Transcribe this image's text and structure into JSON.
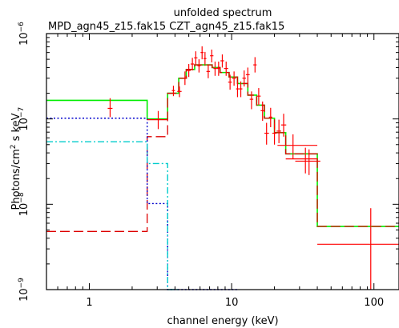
{
  "chart_data": {
    "type": "step",
    "title": "unfolded spectrum",
    "subtitle": "MPD_agn45_z15.fak15  CZT_agn45_z15.fak15",
    "xlabel": "channel energy (keV)",
    "ylabel": "Photons/cm^2 s keV",
    "xscale": "log",
    "yscale": "log",
    "xlim": [
      0.5,
      150
    ],
    "ylim": [
      1e-09,
      1e-06
    ],
    "x_ticks": [
      {
        "value": 1,
        "label": "1"
      },
      {
        "value": 10,
        "label": "10"
      },
      {
        "value": 100,
        "label": "100"
      }
    ],
    "y_ticks": [
      {
        "value": 1e-09,
        "base": "10",
        "exp": "−9"
      },
      {
        "value": 1e-08,
        "base": "10",
        "exp": "−8"
      },
      {
        "value": 1e-07,
        "base": "10",
        "exp": "−7"
      },
      {
        "value": 1e-06,
        "base": "10",
        "exp": "−6"
      }
    ],
    "colors": {
      "data": "#ff0000",
      "total_model": "#00ee00",
      "blue_component": "#0000cc",
      "cyan_component": "#00cccc",
      "red_component": "#dd0000",
      "frame": "#000000"
    },
    "data_points": [
      {
        "x": 1.4,
        "y": 1.33e-07,
        "xerr": [
          1.4,
          1.4
        ],
        "yerr": [
          1.05e-07,
          1.75e-07
        ]
      },
      {
        "x": 3.05,
        "y": 9.8e-08,
        "xerr": [
          2.55,
          3.55
        ],
        "yerr": [
          7.6e-08,
          1.24e-07
        ]
      },
      {
        "x": 3.9,
        "y": 2.15e-07,
        "xerr": [
          3.8,
          4.0
        ],
        "yerr": [
          1.85e-07,
          2.45e-07
        ]
      },
      {
        "x": 4.3,
        "y": 2.1e-07,
        "xerr": [
          4.15,
          4.45
        ],
        "yerr": [
          1.8e-07,
          2.4e-07
        ]
      },
      {
        "x": 4.7,
        "y": 3e-07,
        "xerr": [
          4.55,
          4.85
        ],
        "yerr": [
          2.5e-07,
          3.6e-07
        ]
      },
      {
        "x": 5.0,
        "y": 3.7e-07,
        "xerr": [
          4.85,
          5.15
        ],
        "yerr": [
          3.1e-07,
          4.4e-07
        ]
      },
      {
        "x": 5.3,
        "y": 4.4e-07,
        "xerr": [
          5.15,
          5.45
        ],
        "yerr": [
          3.7e-07,
          5.2e-07
        ]
      },
      {
        "x": 5.6,
        "y": 5.2e-07,
        "xerr": [
          5.45,
          5.75
        ],
        "yerr": [
          4.3e-07,
          6.2e-07
        ]
      },
      {
        "x": 5.9,
        "y": 4.2e-07,
        "xerr": [
          5.75,
          6.05
        ],
        "yerr": [
          3.5e-07,
          5e-07
        ]
      },
      {
        "x": 6.2,
        "y": 6e-07,
        "xerr": [
          6.05,
          6.35
        ],
        "yerr": [
          5e-07,
          7.1e-07
        ]
      },
      {
        "x": 6.5,
        "y": 5.1e-07,
        "xerr": [
          6.35,
          6.65
        ],
        "yerr": [
          4.2e-07,
          6.1e-07
        ]
      },
      {
        "x": 6.85,
        "y": 3.6e-07,
        "xerr": [
          6.65,
          7.05
        ],
        "yerr": [
          3e-07,
          4.3e-07
        ]
      },
      {
        "x": 7.25,
        "y": 5.5e-07,
        "xerr": [
          7.05,
          7.45
        ],
        "yerr": [
          4.6e-07,
          6.5e-07
        ]
      },
      {
        "x": 7.65,
        "y": 3.9e-07,
        "xerr": [
          7.45,
          7.85
        ],
        "yerr": [
          3.2e-07,
          4.7e-07
        ]
      },
      {
        "x": 8.1,
        "y": 3.9e-07,
        "xerr": [
          7.85,
          8.35
        ],
        "yerr": [
          3.2e-07,
          4.7e-07
        ]
      },
      {
        "x": 8.6,
        "y": 4.8e-07,
        "xerr": [
          8.35,
          8.85
        ],
        "yerr": [
          4e-07,
          5.7e-07
        ]
      },
      {
        "x": 9.15,
        "y": 3.9e-07,
        "xerr": [
          8.85,
          9.45
        ],
        "yerr": [
          3.2e-07,
          4.7e-07
        ]
      },
      {
        "x": 9.75,
        "y": 2.7e-07,
        "xerr": [
          9.45,
          10.05
        ],
        "yerr": [
          2.2e-07,
          3.3e-07
        ]
      },
      {
        "x": 10.4,
        "y": 3e-07,
        "xerr": [
          10.05,
          10.75
        ],
        "yerr": [
          2.45e-07,
          3.6e-07
        ]
      },
      {
        "x": 11.0,
        "y": 2.25e-07,
        "xerr": [
          10.75,
          11.3
        ],
        "yerr": [
          1.8e-07,
          2.75e-07
        ]
      },
      {
        "x": 11.6,
        "y": 2.25e-07,
        "xerr": [
          11.3,
          11.9
        ],
        "yerr": [
          1.8e-07,
          2.75e-07
        ]
      },
      {
        "x": 12.25,
        "y": 3e-07,
        "xerr": [
          11.9,
          12.6
        ],
        "yerr": [
          2.4e-07,
          3.7e-07
        ]
      },
      {
        "x": 13.0,
        "y": 3.3e-07,
        "xerr": [
          12.6,
          13.4
        ],
        "yerr": [
          2.6e-07,
          4e-07
        ]
      },
      {
        "x": 13.8,
        "y": 1.7e-07,
        "xerr": [
          13.4,
          14.2
        ],
        "yerr": [
          1.3e-07,
          2.1e-07
        ]
      },
      {
        "x": 14.6,
        "y": 4.3e-07,
        "xerr": [
          14.2,
          15.0
        ],
        "yerr": [
          3.5e-07,
          5.3e-07
        ]
      },
      {
        "x": 15.5,
        "y": 1.85e-07,
        "xerr": [
          15.0,
          16.0
        ],
        "yerr": [
          1.45e-07,
          2.3e-07
        ]
      },
      {
        "x": 16.5,
        "y": 1.25e-07,
        "xerr": [
          16.0,
          17.0
        ],
        "yerr": [
          9.5e-08,
          1.6e-07
        ]
      },
      {
        "x": 17.6,
        "y": 6.8e-08,
        "xerr": [
          17.0,
          18.3
        ],
        "yerr": [
          5e-08,
          9e-08
        ]
      },
      {
        "x": 18.8,
        "y": 1.05e-07,
        "xerr": [
          18.3,
          19.3
        ],
        "yerr": [
          8e-08,
          1.35e-07
        ]
      },
      {
        "x": 20.0,
        "y": 6.8e-08,
        "xerr": [
          19.3,
          20.7
        ],
        "yerr": [
          5e-08,
          9e-08
        ]
      },
      {
        "x": 21.5,
        "y": 7.2e-08,
        "xerr": [
          20.7,
          22.3
        ],
        "yerr": [
          5.2e-08,
          9.8e-08
        ]
      },
      {
        "x": 23.2,
        "y": 8.5e-08,
        "xerr": [
          22.3,
          24.2
        ],
        "yerr": [
          6.2e-08,
          1.15e-07
        ]
      },
      {
        "x": 27.0,
        "y": 4.9e-08,
        "xerr": [
          21.0,
          40.0
        ],
        "yerr": [
          3.4e-08,
          6.6e-08
        ]
      },
      {
        "x": 33.0,
        "y": 3.4e-08,
        "xerr": [
          24.0,
          40.0
        ],
        "yerr": [
          2.3e-08,
          4.6e-08
        ]
      },
      {
        "x": 35.0,
        "y": 3.2e-08,
        "xerr": [
          28.0,
          42.0
        ],
        "yerr": [
          2.2e-08,
          4.4e-08
        ]
      },
      {
        "x": 95.0,
        "y": 3.4e-09,
        "xerr": [
          40.0,
          150.0
        ],
        "yerr": [
          1e-09,
          9e-09
        ]
      }
    ],
    "series": [
      {
        "style": "solid",
        "color_key": "total_model",
        "width": 1.6,
        "steps": [
          [
            0.5,
            2.55,
            1.65e-07
          ],
          [
            2.55,
            3.55,
            1e-07
          ],
          [
            3.55,
            4.25,
            2e-07
          ],
          [
            4.25,
            4.8,
            3e-07
          ],
          [
            4.8,
            5.5,
            3.8e-07
          ],
          [
            5.5,
            7.3,
            4.3e-07
          ],
          [
            7.3,
            8.3,
            4e-07
          ],
          [
            8.3,
            9.6,
            3.5e-07
          ],
          [
            9.6,
            11.0,
            3.1e-07
          ],
          [
            11.0,
            13.0,
            2.6e-07
          ],
          [
            13.0,
            15.0,
            1.9e-07
          ],
          [
            15.0,
            17.0,
            1.45e-07
          ],
          [
            17.0,
            20.0,
            1.02e-07
          ],
          [
            20.0,
            24.0,
            6.9e-08
          ],
          [
            24.0,
            40.0,
            3.9e-08
          ],
          [
            40.0,
            150.0,
            5.5e-09
          ]
        ]
      },
      {
        "style": "dash",
        "color_key": "red_component",
        "width": 1.3,
        "steps": [
          [
            0.5,
            2.55,
            4.8e-09
          ],
          [
            2.55,
            3.55,
            6.2e-08
          ],
          [
            3.55,
            4.25,
            2e-07
          ],
          [
            4.25,
            4.8,
            3e-07
          ],
          [
            4.8,
            5.5,
            3.8e-07
          ],
          [
            5.5,
            7.3,
            4.3e-07
          ],
          [
            7.3,
            8.3,
            4e-07
          ],
          [
            8.3,
            9.6,
            3.5e-07
          ],
          [
            9.6,
            11.0,
            3.1e-07
          ],
          [
            11.0,
            13.0,
            2.6e-07
          ],
          [
            13.0,
            15.0,
            1.9e-07
          ],
          [
            15.0,
            17.0,
            1.45e-07
          ],
          [
            17.0,
            20.0,
            1.02e-07
          ],
          [
            20.0,
            24.0,
            6.9e-08
          ],
          [
            24.0,
            40.0,
            3.9e-08
          ],
          [
            40.0,
            150.0,
            5.5e-09
          ]
        ]
      },
      {
        "style": "dot",
        "color_key": "blue_component",
        "width": 1.4,
        "steps": [
          [
            0.5,
            2.55,
            1.02e-07
          ],
          [
            2.55,
            3.55,
            1.02e-08
          ],
          [
            3.55,
            4.25,
            6.5e-10
          ],
          [
            4.25,
            4.6,
            6.5e-10
          ],
          [
            4.6,
            5.0,
            5.6e-10
          ],
          [
            5.0,
            5.5,
            4.5e-10
          ],
          [
            5.5,
            6.0,
            3.8e-10
          ],
          [
            6.0,
            6.5,
            3.2e-10
          ],
          [
            6.5,
            7.0,
            2.7e-10
          ],
          [
            7.0,
            7.6,
            2.3e-10
          ],
          [
            7.6,
            8.3,
            1.95e-10
          ],
          [
            8.3,
            9.1,
            1.6e-10
          ],
          [
            9.1,
            10.0,
            1.25e-10
          ],
          [
            10.0,
            11.0,
            1e-10
          ]
        ]
      },
      {
        "style": "dashdot",
        "color_key": "cyan_component",
        "width": 1.4,
        "steps": [
          [
            0.5,
            2.55,
            5.4e-08
          ],
          [
            2.55,
            3.55,
            3e-08
          ],
          [
            3.55,
            4.25,
            5e-10
          ]
        ]
      }
    ]
  }
}
